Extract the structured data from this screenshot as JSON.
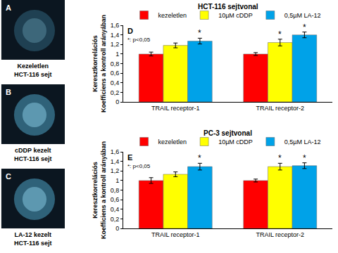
{
  "chart_data": [
    {
      "type": "bar",
      "panel": "D",
      "title": "HCT-116 sejtvonal",
      "y_label": "Keresztkorrelációs\nKoefficiens a kontroll arányában",
      "categories": [
        "TRAIL receptor-1",
        "TRAIL receptor-2"
      ],
      "series": [
        {
          "name": "kezeletlen",
          "color": "#ff0000",
          "values": [
            1.0,
            1.0
          ],
          "errors": [
            0.04,
            0.03
          ]
        },
        {
          "name": "10µM cDDP",
          "color": "#ffff00",
          "values": [
            1.18,
            1.24
          ],
          "errors": [
            0.05,
            0.07
          ]
        },
        {
          "name": "0,5µM LA-12",
          "color": "#00a2e8",
          "values": [
            1.27,
            1.4
          ],
          "errors": [
            0.06,
            0.06
          ]
        }
      ],
      "ylim": [
        0,
        1.6
      ],
      "yticks": [
        0,
        {
          "value": 0.2,
          "label": "0,2"
        },
        {
          "value": 0.4,
          "label": "0,4"
        },
        {
          "value": 0.6,
          "label": "0,6"
        },
        {
          "value": 0.8,
          "label": "0,8"
        },
        1,
        {
          "value": 1.2,
          "label": "1,2"
        },
        {
          "value": 1.4,
          "label": "1,4"
        },
        {
          "value": 1.6,
          "label": "1,6"
        }
      ],
      "grid": false,
      "legend": "top",
      "note": "*: p<0,05",
      "annotations": [
        {
          "text": "*",
          "category": "TRAIL receptor-1",
          "series": "0,5µM LA-12"
        },
        {
          "text": "*",
          "category": "TRAIL receptor-2",
          "series": "10µM cDDP"
        },
        {
          "text": "*",
          "category": "TRAIL receptor-2",
          "series": "0,5µM LA-12"
        }
      ]
    },
    {
      "type": "bar",
      "panel": "E",
      "title": "PC-3 sejtvonal",
      "y_label": "Keresztkorrelációs\nKoefficiens a kontroll arányában",
      "categories": [
        "TRAIL receptor-1",
        "TRAIL receptor-2"
      ],
      "series": [
        {
          "name": "kezeletlen",
          "color": "#ff0000",
          "values": [
            1.0,
            1.0
          ],
          "errors": [
            0.06,
            0.03
          ]
        },
        {
          "name": "10µM cDDP",
          "color": "#ffff00",
          "values": [
            1.13,
            1.29
          ],
          "errors": [
            0.05,
            0.07
          ]
        },
        {
          "name": "0,5µM LA-12",
          "color": "#00a2e8",
          "values": [
            1.29,
            1.31
          ],
          "errors": [
            0.07,
            0.06
          ]
        }
      ],
      "ylim": [
        0,
        1.6
      ],
      "yticks": [
        0,
        {
          "value": 0.2,
          "label": "0,2"
        },
        {
          "value": 0.4,
          "label": "0,4"
        },
        {
          "value": 0.6,
          "label": "0,6"
        },
        {
          "value": 0.8,
          "label": "0,8"
        },
        1,
        {
          "value": 1.2,
          "label": "1,2"
        },
        {
          "value": 1.4,
          "label": "1,4"
        },
        {
          "value": 1.6,
          "label": "1,6"
        }
      ],
      "grid": false,
      "legend": "top",
      "note": "*: p<0,05",
      "annotations": [
        {
          "text": "*",
          "category": "TRAIL receptor-1",
          "series": "0,5µM LA-12"
        },
        {
          "text": "*",
          "category": "TRAIL receptor-2",
          "series": "10µM cDDP"
        },
        {
          "text": "*",
          "category": "TRAIL receptor-2",
          "series": "0,5µM LA-12"
        }
      ]
    }
  ],
  "images": [
    {
      "panel": "A",
      "caption": "Kezeletlen\nHCT-116 sejt"
    },
    {
      "panel": "B",
      "caption": "cDDP kezelt\nHCT-116 sejt"
    },
    {
      "panel": "C",
      "caption": "LA-12 kezelt\nHCT-116 sejt"
    }
  ]
}
